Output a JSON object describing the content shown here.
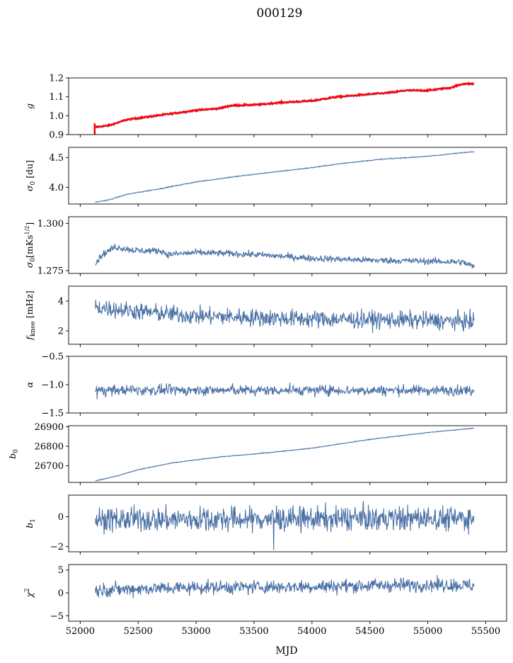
{
  "suptitle": "000129",
  "xlabel": "MJD",
  "colors": {
    "series": "#4c72a6",
    "overlay": "#ff0000",
    "fit": "#8a5aa0"
  },
  "xaxis": {
    "xlim": [
      51900,
      55680
    ],
    "ticks": [
      52000,
      52500,
      53000,
      53500,
      54000,
      54500,
      55000,
      55500
    ]
  },
  "chart_data": [
    {
      "type": "line",
      "ylabel": "g",
      "ylim": [
        0.9,
        1.2
      ],
      "yticks": [
        0.9,
        1.0,
        1.1,
        1.2
      ],
      "ytick_labels": [
        "0.9",
        "1.0",
        "1.1",
        "1.2"
      ],
      "trend": [
        [
          52120,
          0.935
        ],
        [
          52250,
          0.945
        ],
        [
          52400,
          0.975
        ],
        [
          52700,
          1.0
        ],
        [
          53000,
          1.025
        ],
        [
          53200,
          1.035
        ],
        [
          53300,
          1.05
        ],
        [
          53550,
          1.055
        ],
        [
          53700,
          1.065
        ],
        [
          54000,
          1.075
        ],
        [
          54200,
          1.095
        ],
        [
          54500,
          1.11
        ],
        [
          54700,
          1.12
        ],
        [
          54800,
          1.13
        ],
        [
          55000,
          1.13
        ],
        [
          55200,
          1.145
        ],
        [
          55300,
          1.165
        ],
        [
          55400,
          1.165
        ]
      ],
      "noise": 0.002,
      "style": "overlay"
    },
    {
      "type": "line",
      "ylabel": "σ0 [du]",
      "ylim": [
        3.72,
        4.67
      ],
      "yticks": [
        4.0,
        4.5
      ],
      "ytick_labels": [
        "4.0",
        "4.5"
      ],
      "trend": [
        [
          52130,
          3.75
        ],
        [
          52250,
          3.79
        ],
        [
          52400,
          3.88
        ],
        [
          52700,
          3.98
        ],
        [
          53000,
          4.09
        ],
        [
          53300,
          4.17
        ],
        [
          53600,
          4.24
        ],
        [
          54000,
          4.33
        ],
        [
          54300,
          4.41
        ],
        [
          54600,
          4.47
        ],
        [
          55000,
          4.52
        ],
        [
          55400,
          4.6
        ]
      ],
      "noise": 0.004
    },
    {
      "type": "line",
      "ylabel": "σ0[mKs^1/2]",
      "ylim": [
        1.2735,
        1.3035
      ],
      "yticks": [
        1.275,
        1.3
      ],
      "ytick_labels": [
        "1.275",
        "1.300"
      ],
      "trend": [
        [
          52130,
          1.2785
        ],
        [
          52180,
          1.283
        ],
        [
          52300,
          1.2875
        ],
        [
          52500,
          1.2855
        ],
        [
          52700,
          1.2855
        ],
        [
          52750,
          1.2835
        ],
        [
          53000,
          1.2845
        ],
        [
          53300,
          1.284
        ],
        [
          53500,
          1.2835
        ],
        [
          54000,
          1.2815
        ],
        [
          54500,
          1.2805
        ],
        [
          55000,
          1.28
        ],
        [
          55300,
          1.2795
        ],
        [
          55400,
          1.277
        ]
      ],
      "noise": 0.0009
    },
    {
      "type": "line",
      "ylabel": "f_knee [mHz]",
      "ylim": [
        1.1,
        5.0
      ],
      "yticks": [
        2,
        4
      ],
      "ytick_labels": [
        "2",
        "4"
      ],
      "trend": [
        [
          52130,
          3.6
        ],
        [
          52500,
          3.3
        ],
        [
          53000,
          3.0
        ],
        [
          53500,
          2.9
        ],
        [
          54000,
          2.8
        ],
        [
          54500,
          2.75
        ],
        [
          55000,
          2.7
        ],
        [
          55400,
          2.6
        ]
      ],
      "noise": 0.3
    },
    {
      "type": "line",
      "ylabel": "α",
      "ylim": [
        -1.5,
        -0.5
      ],
      "yticks": [
        -1.5,
        -1.0,
        -0.5
      ],
      "ytick_labels": [
        "−1.5",
        "−1.0",
        "−0.5"
      ],
      "trend": [
        [
          52130,
          -1.1
        ],
        [
          55400,
          -1.1
        ]
      ],
      "noise": 0.045
    },
    {
      "type": "line",
      "ylabel": "b0",
      "ylim": [
        26615,
        26905
      ],
      "yticks": [
        26700,
        26800,
        26900
      ],
      "ytick_labels": [
        "26700",
        "26800",
        "26900"
      ],
      "trend": [
        [
          52130,
          26623
        ],
        [
          52300,
          26645
        ],
        [
          52500,
          26680
        ],
        [
          52800,
          26715
        ],
        [
          53200,
          26745
        ],
        [
          53500,
          26760
        ],
        [
          54000,
          26790
        ],
        [
          54500,
          26835
        ],
        [
          55000,
          26870
        ],
        [
          55400,
          26893
        ]
      ],
      "noise": 1.0
    },
    {
      "type": "line",
      "ylabel": "b1",
      "ylim": [
        -2.35,
        1.45
      ],
      "yticks": [
        -2,
        0
      ],
      "ytick_labels": [
        "−2",
        "0"
      ],
      "trend": [
        [
          52130,
          -0.2
        ],
        [
          55400,
          -0.1
        ]
      ],
      "noise": 0.42
    },
    {
      "type": "line",
      "ylabel": "χ²",
      "ylim": [
        -6.2,
        6.2
      ],
      "yticks": [
        -5,
        0,
        5
      ],
      "ytick_labels": [
        "−5",
        "0",
        "5"
      ],
      "trend": [
        [
          52130,
          0.6
        ],
        [
          52500,
          0.9
        ],
        [
          53000,
          1.2
        ],
        [
          53500,
          1.3
        ],
        [
          54000,
          1.4
        ],
        [
          54500,
          1.6
        ],
        [
          55000,
          1.8
        ],
        [
          55400,
          1.6
        ]
      ],
      "noise": 0.75
    }
  ]
}
